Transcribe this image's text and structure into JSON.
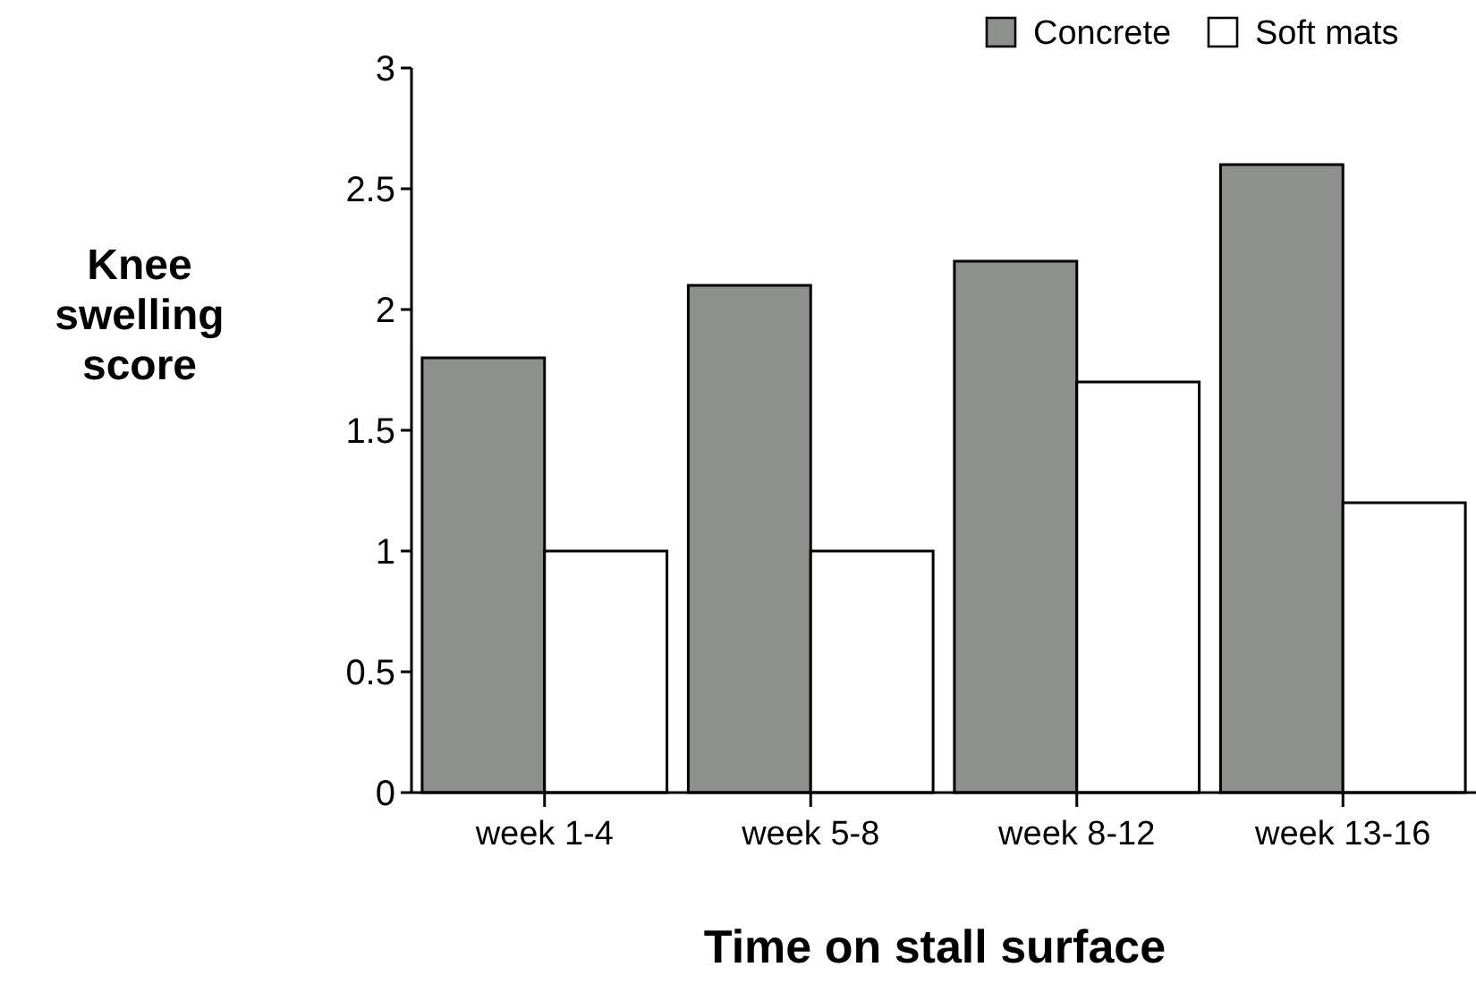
{
  "chart_data": {
    "type": "bar",
    "xlabel": "Time on stall surface",
    "ylabel": "Knee swelling score",
    "categories": [
      "week 1-4",
      "week 5-8",
      "week 8-12",
      "week 13-16"
    ],
    "series": [
      {
        "name": "Concrete",
        "color": "#8e908d",
        "values": [
          1.8,
          2.1,
          2.2,
          2.6
        ]
      },
      {
        "name": "Soft mats",
        "color": "#ffffff",
        "values": [
          1.0,
          1.0,
          1.7,
          1.2
        ]
      }
    ],
    "ylim": [
      0,
      3
    ],
    "yticks": [
      0,
      0.5,
      1,
      1.5,
      2,
      2.5,
      3
    ],
    "legend": "top right",
    "grid": false
  }
}
